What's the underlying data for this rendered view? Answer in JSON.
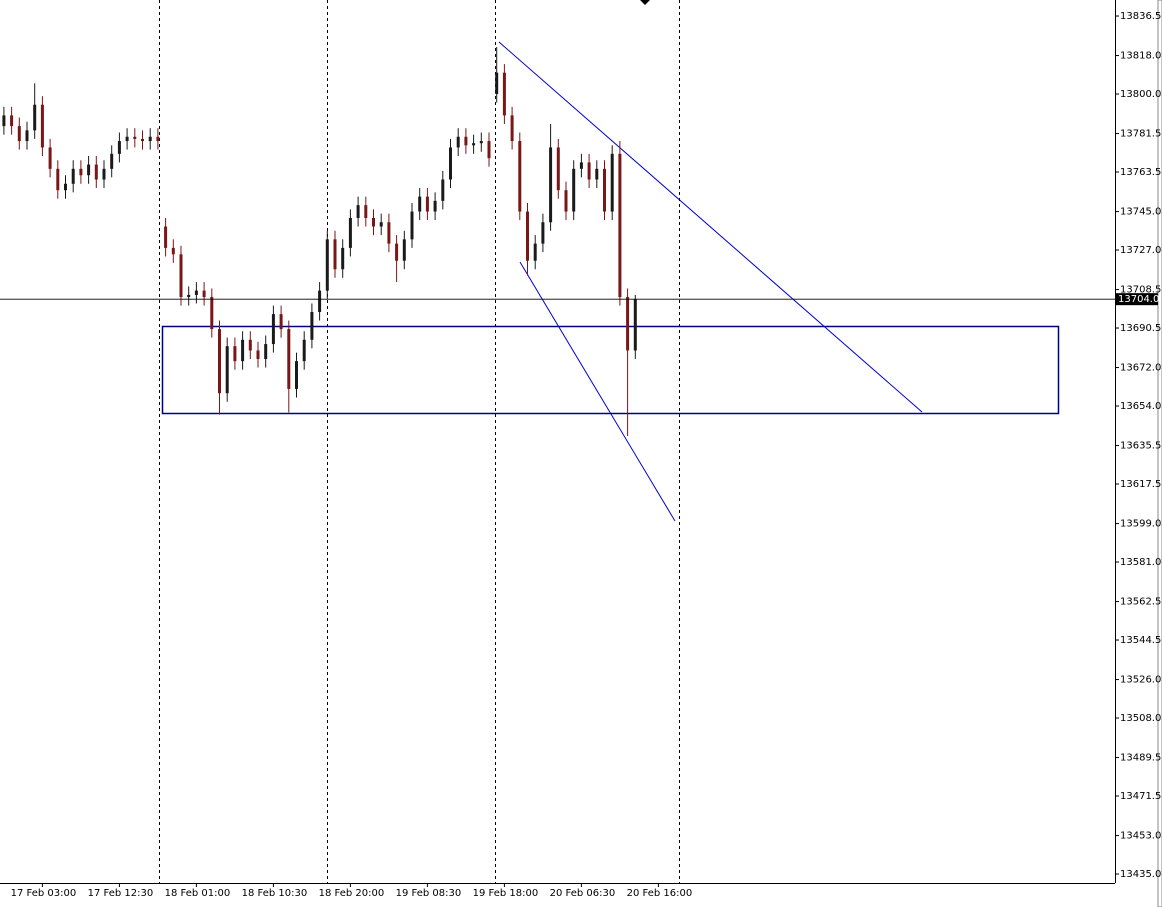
{
  "chart_data": {
    "type": "candlestick",
    "categories": [
      null,
      null,
      null,
      null,
      null,
      "17 Feb 03:00",
      null,
      null,
      null,
      null,
      null,
      null,
      null,
      null,
      null,
      "17 Feb 12:30",
      null,
      null,
      null,
      null,
      null,
      null,
      null,
      null,
      null,
      "18 Feb 01:00",
      null,
      null,
      null,
      null,
      null,
      null,
      null,
      null,
      null,
      "18 Feb 10:30",
      null,
      null,
      null,
      null,
      null,
      null,
      null,
      null,
      null,
      "18 Feb 20:00",
      null,
      null,
      null,
      null,
      null,
      null,
      null,
      null,
      null,
      "19 Feb 08:30",
      null,
      null,
      null,
      null,
      null,
      null,
      null,
      null,
      null,
      "19 Feb 18:00",
      null,
      null,
      null,
      null,
      null,
      null,
      null,
      null,
      null,
      "20 Feb 06:30",
      null,
      null,
      null,
      null,
      null,
      null,
      null,
      null,
      null,
      "20 Feb 16:00"
    ],
    "open": [
      13785,
      13790,
      13785,
      13778,
      13783,
      13795,
      13775,
      13765,
      13755,
      13758,
      13765,
      13762,
      13767,
      13760,
      13765,
      13772,
      13778,
      13780,
      13779,
      13778,
      13780,
      13738,
      13728,
      13725,
      13705,
      13706,
      13708,
      13705,
      13690,
      13660,
      13682,
      13675,
      13685,
      13680,
      13676,
      13683,
      13697,
      13690,
      13662,
      13675,
      13685,
      13698,
      13708,
      13732,
      13718,
      13728,
      13742,
      13748,
      13742,
      13738,
      13740,
      13730,
      13722,
      13732,
      13745,
      13752,
      13745,
      13750,
      13760,
      13775,
      13780,
      13776,
      13777,
      13778,
      13800,
      13810,
      13790,
      13778,
      13745,
      13722,
      13730,
      13740,
      13775,
      13755,
      13745,
      13765,
      13768,
      13760,
      13765,
      13745,
      13772,
      13705,
      13680,
      null,
      null,
      null
    ],
    "high": [
      13794,
      13794,
      13789,
      13787,
      13805,
      13799,
      13779,
      13769,
      13762,
      13769,
      13769,
      13771,
      13771,
      13769,
      13776,
      13782,
      13784,
      13784,
      13783,
      13784,
      13784,
      13742,
      13732,
      13729,
      13710,
      13712,
      13712,
      13709,
      13694,
      13686,
      13686,
      13689,
      13689,
      13684,
      13687,
      13701,
      13701,
      13694,
      13679,
      13689,
      13702,
      13712,
      13736,
      13736,
      13732,
      13746,
      13752,
      13752,
      13746,
      13744,
      13744,
      13734,
      13736,
      13749,
      13756,
      13756,
      13754,
      13764,
      13779,
      13784,
      13784,
      13781,
      13782,
      13782,
      13822,
      13814,
      13794,
      13782,
      13749,
      13734,
      13744,
      13786,
      13779,
      13759,
      13769,
      13772,
      13772,
      13769,
      13769,
      13776,
      13778,
      13709,
      13706,
      null,
      null,
      null
    ],
    "low": [
      13781,
      13781,
      13774,
      13774,
      13779,
      13771,
      13761,
      13751,
      13751,
      13754,
      13758,
      13758,
      13756,
      13756,
      13761,
      13768,
      13774,
      13775,
      13774,
      13774,
      13774,
      13724,
      13721,
      13701,
      13701,
      13702,
      13701,
      13686,
      13650,
      13656,
      13671,
      13671,
      13676,
      13672,
      13672,
      13679,
      13686,
      13651,
      13658,
      13671,
      13681,
      13694,
      13704,
      13714,
      13714,
      13724,
      13738,
      13738,
      13734,
      13734,
      13726,
      13712,
      13718,
      13728,
      13741,
      13741,
      13741,
      13746,
      13756,
      13771,
      13772,
      13772,
      13773,
      13766,
      13796,
      13786,
      13774,
      13741,
      13715,
      13718,
      13726,
      13736,
      13751,
      13741,
      13741,
      13761,
      13756,
      13756,
      13741,
      13741,
      13701,
      13640,
      13676,
      null,
      null,
      null
    ],
    "close": [
      13790,
      13785,
      13778,
      13783,
      13795,
      13775,
      13765,
      13755,
      13758,
      13765,
      13762,
      13767,
      13760,
      13765,
      13772,
      13778,
      13780,
      13779,
      13778,
      13780,
      13778,
      13728,
      13725,
      13705,
      13706,
      13708,
      13705,
      13690,
      13660,
      13682,
      13675,
      13685,
      13680,
      13676,
      13683,
      13697,
      13690,
      13662,
      13675,
      13685,
      13698,
      13708,
      13732,
      13718,
      13728,
      13742,
      13748,
      13742,
      13738,
      13740,
      13730,
      13722,
      13732,
      13745,
      13752,
      13745,
      13750,
      13760,
      13775,
      13780,
      13776,
      13777,
      13778,
      13770,
      13810,
      13790,
      13778,
      13745,
      13722,
      13730,
      13740,
      13775,
      13755,
      13745,
      13765,
      13768,
      13760,
      13765,
      13745,
      13772,
      13705,
      13680,
      13704,
      null,
      null,
      null
    ],
    "up_color": "#1a1a1a",
    "down_color": "#7a1616",
    "ylim": [
      13430.8,
      13844.0
    ],
    "yticks": [
      13836.5,
      {
        "value": 13818.0,
        "label": "13818.0"
      },
      {
        "value": 13800.0,
        "label": "13800.0"
      },
      13781.5,
      13763.5,
      {
        "value": 13745.0,
        "label": "13745.0"
      },
      {
        "value": 13727.0,
        "label": "13727.0"
      },
      13708.5,
      13690.5,
      {
        "value": 13672.0,
        "label": "13672.0"
      },
      {
        "value": 13654.0,
        "label": "13654.0"
      },
      13635.5,
      13617.5,
      {
        "value": 13599.0,
        "label": "13599.0"
      },
      {
        "value": 13581.0,
        "label": "13581.0"
      },
      13562.5,
      13544.5,
      {
        "value": 13526.0,
        "label": "13526.0"
      },
      {
        "value": 13508.0,
        "label": "13508.0"
      },
      13489.5,
      13471.5,
      {
        "value": 13453.0,
        "label": "13453.0"
      },
      {
        "value": 13435.0,
        "label": "13435.0"
      }
    ],
    "price_line": {
      "value": 13704.0,
      "label": "13704.0"
    }
  }
}
